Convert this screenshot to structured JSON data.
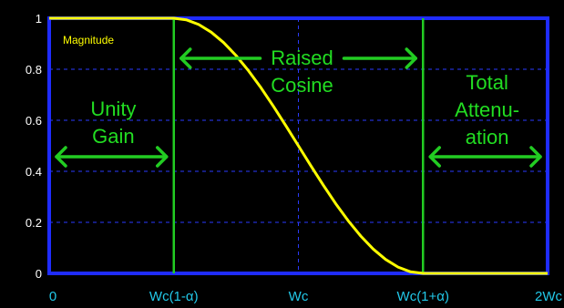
{
  "colors": {
    "background": "#000000",
    "frame": "#1f2cff",
    "grid": "#2a3aff",
    "curve": "#ffff00",
    "markers": "#22cc22",
    "region_text": "#22dd22",
    "y_tick": "#ffffff",
    "x_tick": "#22c8e8",
    "inset_label": "#ffff00"
  },
  "chart_data": {
    "type": "line",
    "inset_label": "Magnitude",
    "ylim": [
      0,
      1
    ],
    "xlim": [
      0,
      1
    ],
    "y_ticks": [
      {
        "v": 0,
        "label": "0"
      },
      {
        "v": 0.2,
        "label": "0.2"
      },
      {
        "v": 0.4,
        "label": "0.4"
      },
      {
        "v": 0.6,
        "label": "0.6"
      },
      {
        "v": 0.8,
        "label": "0.8"
      },
      {
        "v": 1,
        "label": "1"
      }
    ],
    "x_ticks": [
      {
        "v": 0,
        "label": "0"
      },
      {
        "v": 0.25,
        "label": "Wc(1-α)"
      },
      {
        "v": 0.5,
        "label": "Wc"
      },
      {
        "v": 0.75,
        "label": "Wc(1+α)"
      },
      {
        "v": 1,
        "label": "2Wc"
      }
    ],
    "grid": true,
    "markers_x": [
      0.25,
      0.75
    ],
    "curve": {
      "points": [
        [
          0,
          1
        ],
        [
          0.25,
          1
        ],
        [
          0.275,
          0.9938
        ],
        [
          0.3,
          0.9755
        ],
        [
          0.325,
          0.9455
        ],
        [
          0.35,
          0.9045
        ],
        [
          0.375,
          0.8536
        ],
        [
          0.4,
          0.7939
        ],
        [
          0.425,
          0.727
        ],
        [
          0.45,
          0.6545
        ],
        [
          0.475,
          0.5782
        ],
        [
          0.5,
          0.5
        ],
        [
          0.525,
          0.4218
        ],
        [
          0.55,
          0.3455
        ],
        [
          0.575,
          0.273
        ],
        [
          0.6,
          0.2061
        ],
        [
          0.625,
          0.1464
        ],
        [
          0.65,
          0.0955
        ],
        [
          0.675,
          0.0545
        ],
        [
          0.7,
          0.0245
        ],
        [
          0.725,
          0.0062
        ],
        [
          0.75,
          0
        ],
        [
          1,
          0
        ]
      ]
    },
    "regions": [
      {
        "lines": [
          "Unity",
          "Gain"
        ],
        "arrow": "both"
      },
      {
        "lines": [
          "Raised",
          "Cosine"
        ],
        "arrow": "split"
      },
      {
        "lines": [
          "Total",
          "Attenu-",
          "ation"
        ],
        "arrow": "both"
      }
    ]
  }
}
